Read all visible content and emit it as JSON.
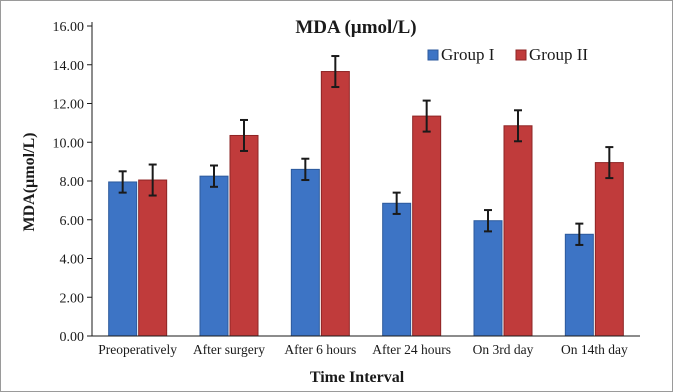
{
  "chart_data": {
    "type": "bar",
    "title": "MDA (µmol/L)",
    "xlabel": "Time Interval",
    "ylabel": "MDA(µmol/L)",
    "ylim": [
      0,
      16
    ],
    "yticks": [
      "0.00",
      "2.00",
      "4.00",
      "6.00",
      "8.00",
      "10.00",
      "12.00",
      "14.00",
      "16.00"
    ],
    "categories": [
      "Preoperatively",
      "After surgery",
      "After 6 hours",
      "After 24 hours",
      "On 3rd day",
      "On 14th day"
    ],
    "series": [
      {
        "name": "Group I",
        "color": "#3d74c5",
        "values": [
          7.95,
          8.25,
          8.6,
          6.85,
          5.95,
          5.25
        ],
        "errors": [
          0.55,
          0.55,
          0.55,
          0.55,
          0.55,
          0.55
        ]
      },
      {
        "name": "Group II",
        "color": "#c03b3b",
        "values": [
          8.05,
          10.35,
          13.65,
          11.35,
          10.85,
          8.95
        ],
        "errors": [
          0.8,
          0.8,
          0.8,
          0.8,
          0.8,
          0.8
        ]
      }
    ],
    "grid": false,
    "legend_position": "top-right"
  }
}
